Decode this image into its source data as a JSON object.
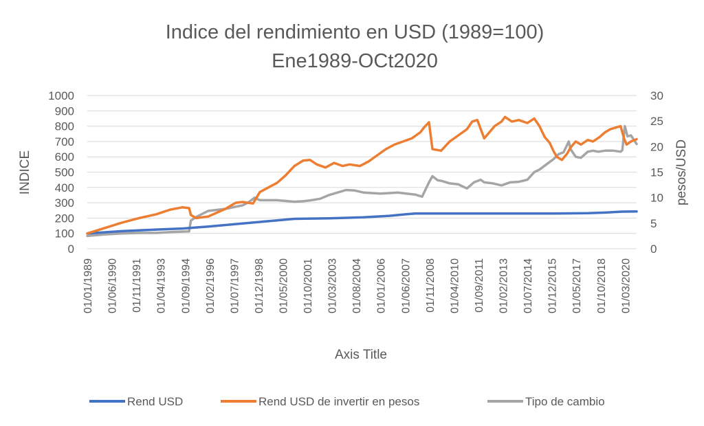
{
  "chart_data": {
    "type": "line",
    "title": "Indice del rendimiento en USD (1989=100)",
    "subtitle": "Ene1989-OCt2020",
    "xlabel": "Axis Title",
    "ylabel": "INDICE",
    "y2label": "pesos/USD",
    "ylim": [
      0,
      1000
    ],
    "y2lim": [
      0,
      30
    ],
    "yticks": [
      "0",
      "100",
      "200",
      "300",
      "400",
      "500",
      "600",
      "700",
      "800",
      "900",
      "1000"
    ],
    "y2ticks": [
      "0",
      "5",
      "10",
      "15",
      "20",
      "25",
      "30"
    ],
    "xlim": [
      1989.0,
      2020.83
    ],
    "xticks": [
      {
        "label": "01/01/1989",
        "x": 1989.0
      },
      {
        "label": "01/06/1990",
        "x": 1990.417
      },
      {
        "label": "01/11/1991",
        "x": 1991.833
      },
      {
        "label": "01/04/1993",
        "x": 1993.25
      },
      {
        "label": "01/09/1994",
        "x": 1994.667
      },
      {
        "label": "01/02/1996",
        "x": 1996.083
      },
      {
        "label": "01/07/1997",
        "x": 1997.5
      },
      {
        "label": "01/12/1998",
        "x": 1998.917
      },
      {
        "label": "01/05/2000",
        "x": 2000.333
      },
      {
        "label": "01/10/2001",
        "x": 2001.75
      },
      {
        "label": "01/03/2003",
        "x": 2003.167
      },
      {
        "label": "01/08/2004",
        "x": 2004.583
      },
      {
        "label": "01/01/2006",
        "x": 2006.0
      },
      {
        "label": "01/06/2007",
        "x": 2007.417
      },
      {
        "label": "01/11/2008",
        "x": 2008.833
      },
      {
        "label": "01/04/2010",
        "x": 2010.25
      },
      {
        "label": "01/09/2011",
        "x": 2011.667
      },
      {
        "label": "01/02/2013",
        "x": 2013.083
      },
      {
        "label": "01/07/2014",
        "x": 2014.5
      },
      {
        "label": "01/12/2015",
        "x": 2015.917
      },
      {
        "label": "01/05/2017",
        "x": 2017.333
      },
      {
        "label": "01/10/2018",
        "x": 2018.75
      },
      {
        "label": "01/03/2020",
        "x": 2020.167
      }
    ],
    "grid": true,
    "legend_position": "bottom",
    "series": [
      {
        "name": "Rend USD",
        "color": "#4472c4",
        "axis": "left",
        "x": [
          1989.0,
          1991.0,
          1993.0,
          1994.5,
          1996.0,
          1998.0,
          2000.0,
          2001.0,
          2003.0,
          2005.0,
          2006.5,
          2007.5,
          2008.0,
          2010.0,
          2012.0,
          2014.0,
          2016.0,
          2018.0,
          2019.0,
          2020.0,
          2020.83
        ],
        "values": [
          100,
          115,
          125,
          132,
          145,
          165,
          185,
          195,
          198,
          205,
          215,
          225,
          230,
          230,
          230,
          230,
          230,
          232,
          236,
          242,
          243
        ]
      },
      {
        "name": "Rend USD de invertir en pesos",
        "color": "#ed7d31",
        "axis": "left",
        "x": [
          1989.0,
          1990.0,
          1991.0,
          1992.0,
          1993.0,
          1993.8,
          1994.5,
          1994.9,
          1995.0,
          1995.3,
          1996.0,
          1997.0,
          1997.6,
          1998.0,
          1998.6,
          1999.0,
          2000.0,
          2000.5,
          2001.0,
          2001.5,
          2001.9,
          2002.3,
          2002.8,
          2003.3,
          2003.8,
          2004.2,
          2004.8,
          2005.3,
          2005.8,
          2006.3,
          2006.8,
          2007.3,
          2007.8,
          2008.3,
          2008.5,
          2008.8,
          2009.0,
          2009.5,
          2010.0,
          2010.5,
          2011.0,
          2011.3,
          2011.6,
          2012.0,
          2012.3,
          2012.6,
          2013.0,
          2013.2,
          2013.6,
          2014.0,
          2014.5,
          2014.9,
          2015.2,
          2015.5,
          2015.8,
          2016.0,
          2016.2,
          2016.5,
          2016.8,
          2017.0,
          2017.3,
          2017.6,
          2018.0,
          2018.3,
          2018.7,
          2019.0,
          2019.3,
          2019.6,
          2019.9,
          2020.0,
          2020.1,
          2020.25,
          2020.5,
          2020.83
        ],
        "values": [
          100,
          135,
          170,
          200,
          225,
          255,
          270,
          265,
          220,
          200,
          210,
          260,
          300,
          305,
          295,
          370,
          430,
          480,
          540,
          575,
          580,
          550,
          530,
          560,
          540,
          550,
          540,
          570,
          610,
          650,
          680,
          700,
          720,
          760,
          790,
          825,
          650,
          640,
          700,
          740,
          780,
          830,
          840,
          720,
          760,
          800,
          830,
          860,
          830,
          840,
          820,
          850,
          800,
          730,
          690,
          640,
          600,
          580,
          620,
          660,
          700,
          680,
          710,
          700,
          730,
          760,
          780,
          790,
          800,
          760,
          720,
          680,
          700,
          715
        ]
      },
      {
        "name": "Tipo de cambio",
        "color": "#a5a5a5",
        "axis": "right",
        "x": [
          1989.0,
          1990.0,
          1991.0,
          1992.0,
          1993.0,
          1994.0,
          1994.9,
          1995.0,
          1995.3,
          1996.0,
          1997.0,
          1998.0,
          1998.3,
          1998.7,
          1999.0,
          2000.0,
          2001.0,
          2001.5,
          2002.0,
          2002.5,
          2003.0,
          2004.0,
          2004.5,
          2005.0,
          2006.0,
          2006.5,
          2007.0,
          2008.0,
          2008.4,
          2008.8,
          2009.0,
          2009.3,
          2009.5,
          2010.0,
          2010.5,
          2011.0,
          2011.4,
          2011.8,
          2012.0,
          2012.5,
          2013.0,
          2013.5,
          2014.0,
          2014.5,
          2014.9,
          2015.2,
          2015.6,
          2016.0,
          2016.3,
          2016.6,
          2016.9,
          2017.0,
          2017.3,
          2017.6,
          2018.0,
          2018.3,
          2018.6,
          2019.0,
          2019.5,
          2019.9,
          2020.0,
          2020.15,
          2020.3,
          2020.5,
          2020.83
        ],
        "values": [
          2.5,
          2.8,
          3.0,
          3.1,
          3.1,
          3.3,
          3.4,
          5.5,
          6.2,
          7.4,
          7.8,
          8.5,
          9.0,
          10.0,
          9.5,
          9.5,
          9.2,
          9.3,
          9.5,
          9.8,
          10.5,
          11.5,
          11.4,
          11.0,
          10.8,
          10.9,
          11.0,
          10.6,
          10.2,
          13.0,
          14.2,
          13.4,
          13.3,
          12.8,
          12.6,
          11.8,
          13.0,
          13.5,
          13.0,
          12.8,
          12.4,
          13.0,
          13.1,
          13.5,
          15.0,
          15.5,
          16.5,
          17.5,
          18.5,
          18.9,
          21.0,
          19.5,
          18.0,
          17.8,
          19.0,
          19.2,
          19.0,
          19.2,
          19.2,
          19.0,
          19.3,
          24.0,
          22.0,
          22.2,
          20.5
        ]
      }
    ]
  }
}
